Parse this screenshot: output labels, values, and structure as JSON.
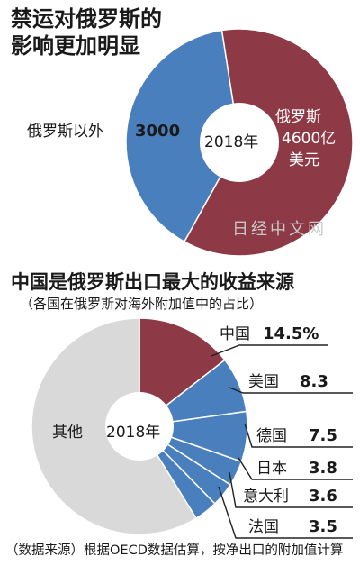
{
  "chart_data": [
    {
      "type": "pie",
      "title": "禁运对俄罗斯的影响更加明显",
      "center_label": "2018年",
      "slices": [
        {
          "label": "俄罗斯以外",
          "value": 3000,
          "value_text": "3000",
          "color": "#4a7fbd"
        },
        {
          "label": "俄罗斯",
          "value": 4600,
          "value_text": "4600亿",
          "unit": "美元",
          "color": "#8e3a46"
        }
      ]
    },
    {
      "type": "pie",
      "title": "中国是俄罗斯出口最大的收益来源",
      "subtitle": "（各国在俄罗斯对海外附加值中的占比）",
      "center_label": "2018年",
      "slices": [
        {
          "label": "中国",
          "value": 14.5,
          "value_text": "14.5%",
          "color": "#8e3a46"
        },
        {
          "label": "美国",
          "value": 8.3,
          "value_text": "8.3",
          "color": "#4a7fbd"
        },
        {
          "label": "德国",
          "value": 7.5,
          "value_text": "7.5",
          "color": "#4a7fbd"
        },
        {
          "label": "日本",
          "value": 3.8,
          "value_text": "3.8",
          "color": "#4a7fbd"
        },
        {
          "label": "意大利",
          "value": 3.6,
          "value_text": "3.6",
          "color": "#4a7fbd"
        },
        {
          "label": "法国",
          "value": 3.5,
          "value_text": "3.5",
          "color": "#4a7fbd"
        },
        {
          "label": "其他",
          "value": 58.8,
          "value_text": "",
          "color": "#d9d9d9"
        }
      ]
    }
  ],
  "source": "（数据来源）根据OECD数据估算，按净出口的附加值计算",
  "watermark": "日经中文网"
}
